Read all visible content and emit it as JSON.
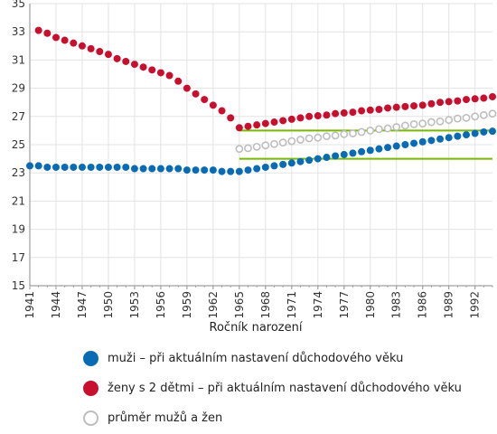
{
  "chart_data": {
    "type": "scatter",
    "title": "",
    "xlabel": "Ročník narození",
    "ylabel": "",
    "xlim": [
      1941,
      1994
    ],
    "ylim": [
      15,
      35
    ],
    "yticks": [
      "15",
      "17",
      "19",
      "21",
      "23",
      "25",
      "27",
      "29",
      "31",
      "33",
      "35"
    ],
    "xticks": [
      "1941",
      "1944",
      "1947",
      "1950",
      "1953",
      "1956",
      "1959",
      "1962",
      "1965",
      "1968",
      "1971",
      "1974",
      "1977",
      "1980",
      "1983",
      "1986",
      "1989",
      "1992"
    ],
    "grid": true,
    "legend_position": "bottom",
    "series": [
      {
        "name": "muži – při aktuálním nastavení důchodového věku",
        "color": "#0a6bb5",
        "marker": "filled",
        "x": [
          1941,
          1942,
          1943,
          1944,
          1945,
          1946,
          1947,
          1948,
          1949,
          1950,
          1951,
          1952,
          1953,
          1954,
          1955,
          1956,
          1957,
          1958,
          1959,
          1960,
          1961,
          1962,
          1963,
          1964,
          1965,
          1966,
          1967,
          1968,
          1969,
          1970,
          1971,
          1972,
          1973,
          1974,
          1975,
          1976,
          1977,
          1978,
          1979,
          1980,
          1981,
          1982,
          1983,
          1984,
          1985,
          1986,
          1987,
          1988,
          1989,
          1990,
          1991,
          1992,
          1993,
          1994
        ],
        "y": [
          23.5,
          23.5,
          23.4,
          23.4,
          23.4,
          23.4,
          23.4,
          23.4,
          23.4,
          23.4,
          23.4,
          23.4,
          23.3,
          23.3,
          23.3,
          23.3,
          23.3,
          23.3,
          23.2,
          23.2,
          23.2,
          23.2,
          23.1,
          23.1,
          23.1,
          23.2,
          23.3,
          23.4,
          23.5,
          23.6,
          23.7,
          23.8,
          23.9,
          24.0,
          24.1,
          24.2,
          24.3,
          24.4,
          24.5,
          24.6,
          24.7,
          24.8,
          24.9,
          25.0,
          25.1,
          25.2,
          25.3,
          25.4,
          25.5,
          25.6,
          25.7,
          25.8,
          25.9,
          25.95
        ]
      },
      {
        "name": "ženy s 2 dětmi – při aktuálním nastavení důchodového věku",
        "color": "#c8102e",
        "marker": "filled",
        "x": [
          1942,
          1943,
          1944,
          1945,
          1946,
          1947,
          1948,
          1949,
          1950,
          1951,
          1952,
          1953,
          1954,
          1955,
          1956,
          1957,
          1958,
          1959,
          1960,
          1961,
          1962,
          1963,
          1964,
          1965,
          1966,
          1967,
          1968,
          1969,
          1970,
          1971,
          1972,
          1973,
          1974,
          1975,
          1976,
          1977,
          1978,
          1979,
          1980,
          1981,
          1982,
          1983,
          1984,
          1985,
          1986,
          1987,
          1988,
          1989,
          1990,
          1991,
          1992,
          1993,
          1994
        ],
        "y": [
          33.1,
          32.9,
          32.6,
          32.4,
          32.2,
          32.0,
          31.8,
          31.6,
          31.4,
          31.1,
          30.9,
          30.7,
          30.5,
          30.3,
          30.1,
          29.9,
          29.5,
          29.0,
          28.6,
          28.2,
          27.8,
          27.4,
          26.9,
          26.2,
          26.3,
          26.4,
          26.5,
          26.6,
          26.7,
          26.8,
          26.9,
          27.0,
          27.05,
          27.1,
          27.2,
          27.25,
          27.3,
          27.4,
          27.45,
          27.5,
          27.6,
          27.65,
          27.7,
          27.75,
          27.8,
          27.9,
          28.0,
          28.05,
          28.1,
          28.2,
          28.25,
          28.3,
          28.4
        ]
      },
      {
        "name": "průměr mužů a žen",
        "color": "#bdbdbd",
        "marker": "hollow",
        "x": [
          1965,
          1966,
          1967,
          1968,
          1969,
          1970,
          1971,
          1972,
          1973,
          1974,
          1975,
          1976,
          1977,
          1978,
          1979,
          1980,
          1981,
          1982,
          1983,
          1984,
          1985,
          1986,
          1987,
          1988,
          1989,
          1990,
          1991,
          1992,
          1993,
          1994
        ],
        "y": [
          24.7,
          24.75,
          24.85,
          24.95,
          25.05,
          25.15,
          25.25,
          25.35,
          25.45,
          25.5,
          25.6,
          25.65,
          25.75,
          25.8,
          25.9,
          26.0,
          26.1,
          26.15,
          26.25,
          26.35,
          26.45,
          26.5,
          26.6,
          26.65,
          26.75,
          26.85,
          26.9,
          27.0,
          27.1,
          27.2
        ]
      }
    ],
    "reference_lines": [
      {
        "color": "#7ab800",
        "x": [
          1965,
          1994
        ],
        "y": [
          26.0,
          26.0
        ]
      },
      {
        "color": "#7ab800",
        "x": [
          1965,
          1994
        ],
        "y": [
          24.0,
          24.0
        ]
      }
    ]
  }
}
